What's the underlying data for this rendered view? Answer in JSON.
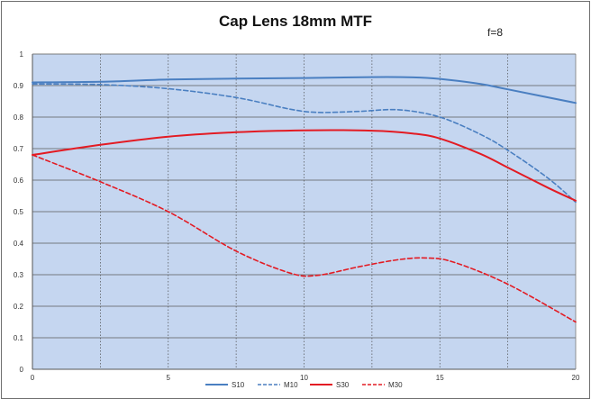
{
  "chart_data": {
    "type": "line",
    "title": "Cap Lens 18mm MTF",
    "annotation": "f=8",
    "xlabel": "",
    "ylabel": "",
    "xlim": [
      0,
      20
    ],
    "ylim": [
      0,
      1
    ],
    "x_ticks": [
      0,
      5,
      10,
      15,
      20
    ],
    "x_tick_labels": [
      "0",
      "5",
      "10",
      "15",
      "20"
    ],
    "y_ticks": [
      0,
      0.1,
      0.2,
      0.3,
      0.4,
      0.5,
      0.6,
      0.7,
      0.8,
      0.9,
      1
    ],
    "y_tick_labels": [
      "0",
      "0.1",
      "0.2",
      "0.3",
      "0.4",
      "0.5",
      "0.6",
      "0.7",
      "0.8",
      "0.9",
      "1"
    ],
    "grid": "on",
    "background_color": "#c5d6f0",
    "legend_position": "bottom",
    "series": [
      {
        "name": "S10",
        "color": "#4a7fc1",
        "dash": "solid",
        "x": [
          0,
          2.5,
          5,
          7.5,
          10,
          12.5,
          14,
          15,
          16.5,
          17.5,
          20
        ],
        "y": [
          0.91,
          0.912,
          0.919,
          0.922,
          0.924,
          0.927,
          0.926,
          0.921,
          0.905,
          0.888,
          0.845
        ]
      },
      {
        "name": "M10",
        "color": "#4a7fc1",
        "dash": "dashed",
        "x": [
          0,
          2.5,
          5,
          7.5,
          9.5,
          10.5,
          12,
          13.5,
          15,
          16.5,
          17.5,
          19,
          20
        ],
        "y": [
          0.905,
          0.903,
          0.89,
          0.862,
          0.825,
          0.815,
          0.818,
          0.823,
          0.8,
          0.745,
          0.695,
          0.605,
          0.53
        ]
      },
      {
        "name": "S30",
        "color": "#e31b23",
        "dash": "solid",
        "x": [
          0,
          2.5,
          5,
          7.5,
          10,
          12.5,
          14,
          15,
          16.5,
          17.5,
          19,
          20
        ],
        "y": [
          0.68,
          0.712,
          0.738,
          0.752,
          0.758,
          0.757,
          0.748,
          0.732,
          0.683,
          0.64,
          0.575,
          0.535
        ]
      },
      {
        "name": "M30",
        "color": "#e31b23",
        "dash": "dashed",
        "x": [
          0,
          2.5,
          5,
          7.5,
          9.5,
          10.5,
          12,
          13.5,
          14.5,
          15.5,
          17.5,
          20
        ],
        "y": [
          0.68,
          0.595,
          0.5,
          0.375,
          0.305,
          0.298,
          0.325,
          0.348,
          0.353,
          0.34,
          0.27,
          0.15
        ]
      }
    ]
  }
}
